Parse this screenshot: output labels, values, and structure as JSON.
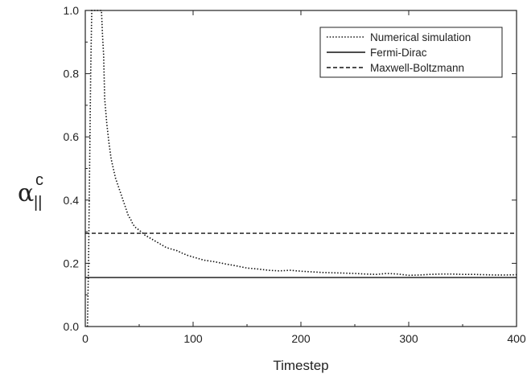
{
  "chart_data": {
    "type": "line",
    "xlabel": "Timestep",
    "ylabel": {
      "symbol": "α",
      "subscript": "||",
      "superscript": "c"
    },
    "xlim": [
      0,
      400
    ],
    "ylim": [
      0.0,
      1.0
    ],
    "xticks": [
      0,
      100,
      200,
      300,
      400
    ],
    "xtick_labels": [
      "0",
      "100",
      "200",
      "300",
      "400"
    ],
    "yticks": [
      0.0,
      0.2,
      0.4,
      0.6,
      0.8,
      1.0
    ],
    "ytick_labels": [
      "0.0",
      "0.2",
      "0.4",
      "0.6",
      "0.8",
      "1.0"
    ],
    "grid": false,
    "legend_position": "top-right",
    "series": [
      {
        "name": "Numerical simulation",
        "style": "dotted",
        "color": "#111111",
        "x": [
          2,
          3,
          4,
          5,
          6,
          8,
          10,
          12,
          13,
          14,
          15,
          16,
          17,
          18,
          20,
          22,
          24,
          26,
          28,
          30,
          32,
          34,
          36,
          38,
          40,
          42,
          44,
          46,
          48,
          50,
          55,
          60,
          65,
          70,
          75,
          80,
          85,
          90,
          95,
          100,
          110,
          120,
          130,
          140,
          150,
          160,
          170,
          180,
          190,
          200,
          210,
          220,
          230,
          240,
          250,
          260,
          270,
          280,
          290,
          300,
          310,
          320,
          330,
          340,
          350,
          360,
          370,
          380,
          390,
          400
        ],
        "y": [
          0.0,
          0.2,
          0.5,
          0.8,
          1.0,
          1.0,
          1.0,
          1.0,
          1.0,
          1.0,
          1.0,
          0.92,
          0.86,
          0.72,
          0.64,
          0.58,
          0.53,
          0.5,
          0.47,
          0.45,
          0.43,
          0.41,
          0.39,
          0.37,
          0.35,
          0.34,
          0.325,
          0.315,
          0.31,
          0.305,
          0.29,
          0.28,
          0.27,
          0.26,
          0.25,
          0.245,
          0.24,
          0.232,
          0.225,
          0.22,
          0.21,
          0.205,
          0.198,
          0.192,
          0.185,
          0.182,
          0.178,
          0.176,
          0.178,
          0.175,
          0.173,
          0.171,
          0.17,
          0.169,
          0.168,
          0.166,
          0.165,
          0.168,
          0.166,
          0.162,
          0.163,
          0.165,
          0.166,
          0.166,
          0.165,
          0.165,
          0.164,
          0.163,
          0.163,
          0.164
        ]
      },
      {
        "name": "Fermi-Dirac",
        "style": "solid",
        "color": "#111111",
        "x": [
          0,
          400
        ],
        "y": [
          0.155,
          0.155
        ]
      },
      {
        "name": "Maxwell-Boltzmann",
        "style": "dashed",
        "color": "#111111",
        "x": [
          0,
          400
        ],
        "y": [
          0.295,
          0.295
        ]
      }
    ]
  }
}
